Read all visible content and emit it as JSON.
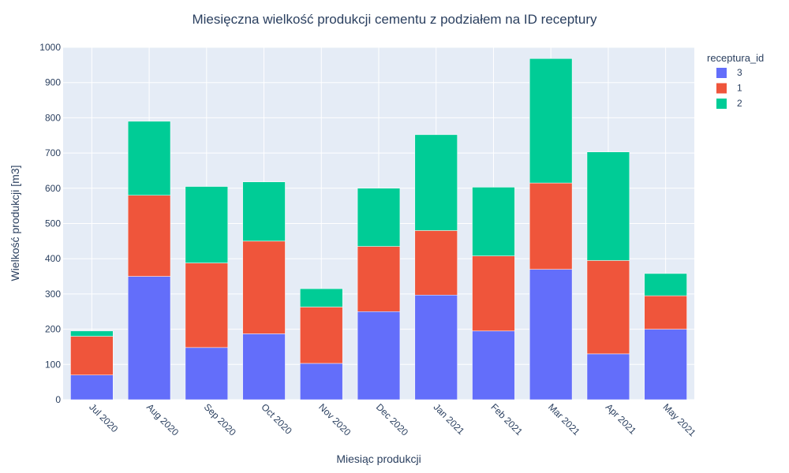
{
  "chart_data": {
    "type": "bar",
    "stacked": true,
    "title": "Miesięczna wielkość produkcji cementu z podziałem na ID receptury",
    "xlabel": "Miesiąc produkcji",
    "ylabel": "Wielkość produkcji [m3]",
    "ylim": [
      0,
      1000
    ],
    "yticks": [
      0,
      100,
      200,
      300,
      400,
      500,
      600,
      700,
      800,
      900,
      1000
    ],
    "grid": true,
    "legend_title": "receptura_id",
    "legend_position": "top-right",
    "categories": [
      "Jul 2020",
      "Aug 2020",
      "Sep 2020",
      "Oct 2020",
      "Nov 2020",
      "Dec 2020",
      "Jan 2021",
      "Feb 2021",
      "Mar 2021",
      "Apr 2021",
      "May 2021"
    ],
    "series": [
      {
        "name": "3",
        "color": "#636efa",
        "values": [
          70,
          350,
          148,
          187,
          103,
          250,
          297,
          195,
          370,
          130,
          200
        ]
      },
      {
        "name": "1",
        "color": "#ef553b",
        "values": [
          110,
          230,
          240,
          263,
          160,
          185,
          183,
          213,
          245,
          265,
          95
        ]
      },
      {
        "name": "2",
        "color": "#00cc96",
        "values": [
          15,
          210,
          217,
          168,
          52,
          165,
          272,
          195,
          353,
          308,
          63
        ]
      }
    ]
  }
}
